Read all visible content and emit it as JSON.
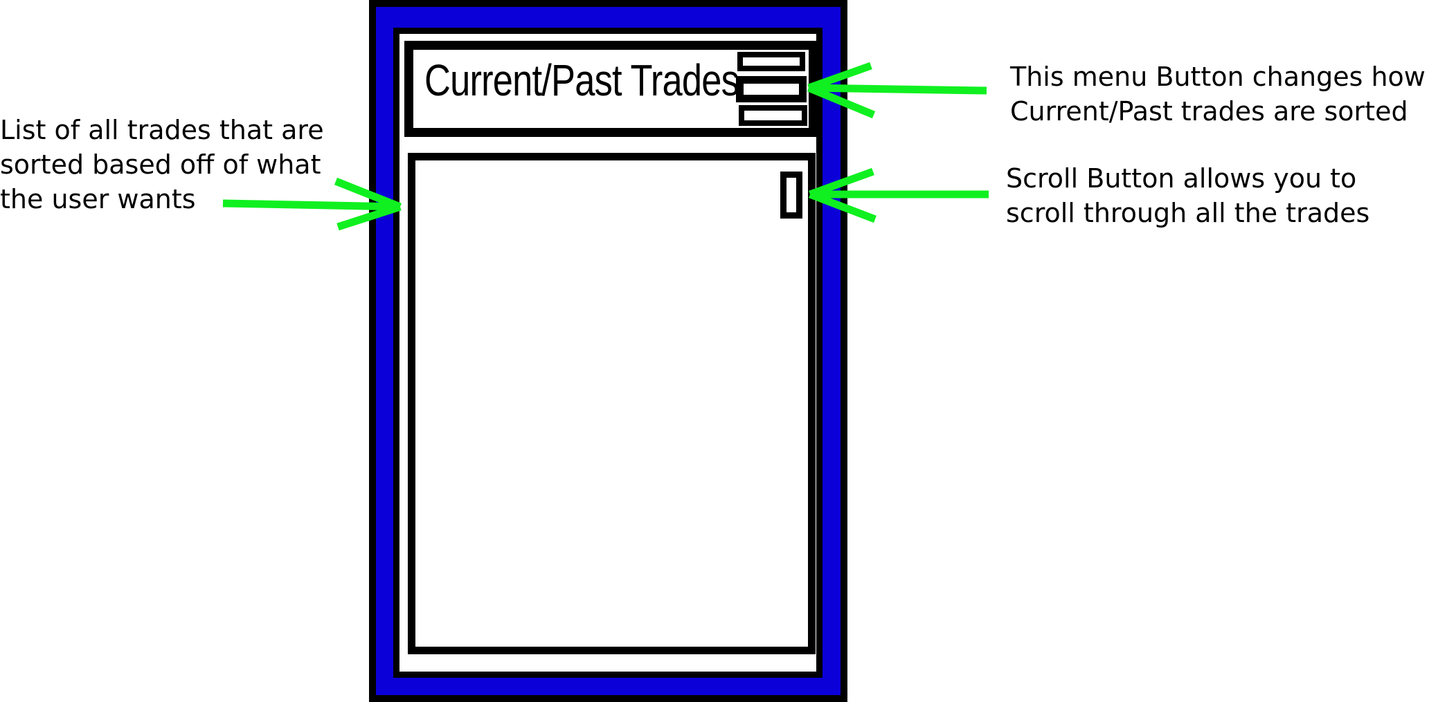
{
  "screen": {
    "title": "Current/Past Trades"
  },
  "annotations": {
    "list": "List of all trades that are\nsorted based off of what\nthe user wants",
    "menu_button": "This menu Button changes how\nCurrent/Past trades are sorted",
    "scroll_button": "Scroll Button allows you to\nscroll through all the trades"
  },
  "colors": {
    "frame": "#0c00d8",
    "arrow": "#10f020",
    "outline": "#000000"
  },
  "icons": {
    "menu": "hamburger-menu-icon",
    "scroll": "scroll-handle-icon"
  }
}
